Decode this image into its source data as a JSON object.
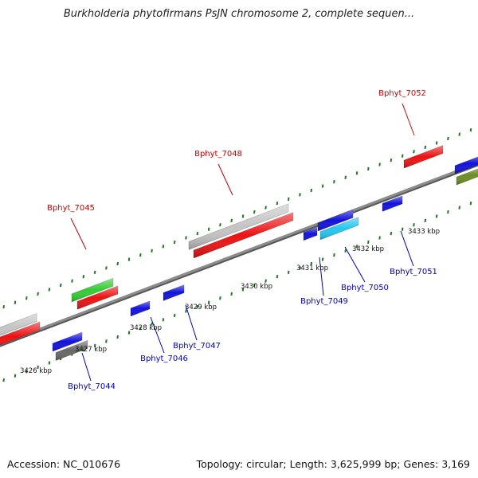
{
  "title": "Burkholderia phytofirmans PsJN chromosome 2, complete sequen...",
  "footer": {
    "accession": "Accession: NC_010676",
    "topology": "Topology: circular; Length: 3,625,999 bp; Genes: 3,169"
  },
  "colors": {
    "backbone": "#8c8c8c",
    "tick": "#1e7a1e",
    "forward_label": "#cc0000",
    "reverse_label": "#0000cc",
    "red": "#ee1111",
    "gray": "#c4c4c4",
    "green": "#33cc33",
    "blue": "#1111dd",
    "cyan": "#22c8f0",
    "darkgray": "#666666",
    "olive": "#6b8e23"
  },
  "scale_labels": [
    "3426 kbp",
    "3427 kbp",
    "3428 kbp",
    "3429 kbp",
    "3430 kbp",
    "3431 kbp",
    "3432 kbp",
    "3433 kbp"
  ],
  "gene_labels": [
    "Bphyt_7044",
    "Bphyt_7045",
    "Bphyt_7046",
    "Bphyt_7047",
    "Bphyt_7048",
    "Bphyt_7049",
    "Bphyt_7050",
    "Bphyt_7051",
    "Bphyt_7052"
  ],
  "forward_label_genes": [
    "Bphyt_7045",
    "Bphyt_7048",
    "Bphyt_7052"
  ],
  "reverse_label_genes": [
    "Bphyt_7044",
    "Bphyt_7046",
    "Bphyt_7047",
    "Bphyt_7049",
    "Bphyt_7050",
    "Bphyt_7051"
  ]
}
